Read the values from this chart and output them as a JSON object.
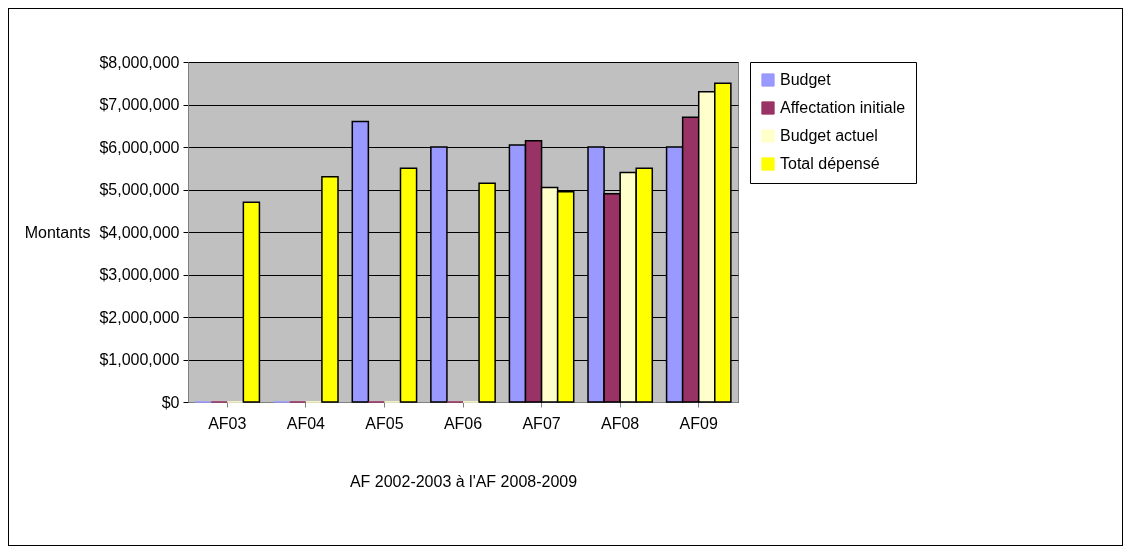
{
  "chart_data": {
    "type": "bar",
    "xlabel": "AF 2002-2003 à l'AF 2008-2009",
    "ylabel": "Montants",
    "categories": [
      "AF03",
      "AF04",
      "AF05",
      "AF06",
      "AF07",
      "AF08",
      "AF09"
    ],
    "series": [
      {
        "name": "Budget",
        "color": "#9999ff",
        "values": [
          0,
          0,
          6600000,
          6000000,
          6050000,
          6000000,
          6000000
        ]
      },
      {
        "name": "Affectation initiale",
        "color": "#993366",
        "values": [
          0,
          0,
          0,
          0,
          6150000,
          4900000,
          6700000
        ]
      },
      {
        "name": "Budget actuel",
        "color": "#ffffcc",
        "values": [
          0,
          0,
          0,
          0,
          5050000,
          5400000,
          7300000
        ]
      },
      {
        "name": "Total dépensé",
        "color": "#ffff00",
        "values": [
          4700000,
          5300000,
          5500000,
          5150000,
          4950000,
          5500000,
          7500000
        ]
      }
    ],
    "ylim": [
      0,
      8000000
    ],
    "yticks": [
      {
        "value": 0,
        "label": "$0"
      },
      {
        "value": 1000000,
        "label": "$1,000,000"
      },
      {
        "value": 2000000,
        "label": "$2,000,000"
      },
      {
        "value": 3000000,
        "label": "$3,000,000"
      },
      {
        "value": 4000000,
        "label": "$4,000,000"
      },
      {
        "value": 5000000,
        "label": "$5,000,000"
      },
      {
        "value": 6000000,
        "label": "$6,000,000"
      },
      {
        "value": 7000000,
        "label": "$7,000,000"
      },
      {
        "value": 8000000,
        "label": "$8,000,000"
      }
    ],
    "grid": "y",
    "legend": "right"
  }
}
